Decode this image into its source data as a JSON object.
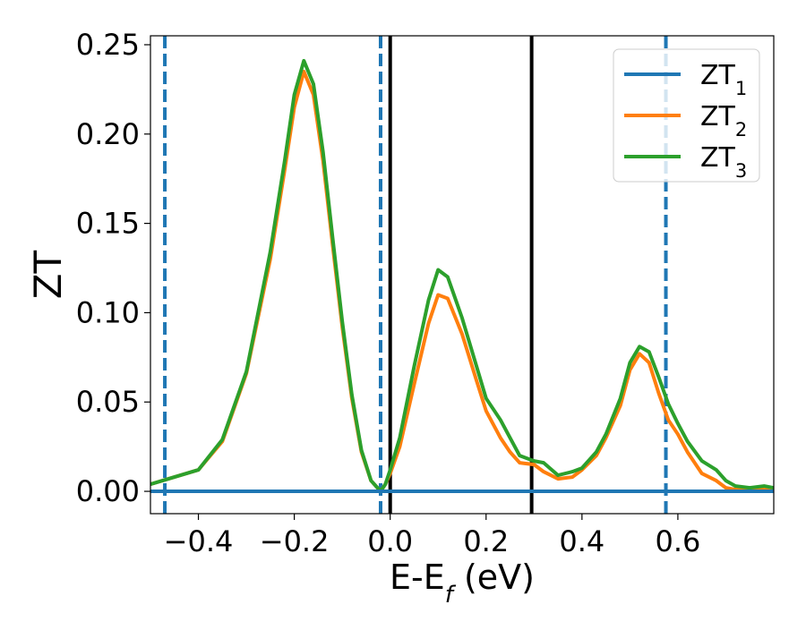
{
  "chart_data": {
    "type": "line",
    "title": "",
    "xlabel": "E-E",
    "xlabel_sub": "f",
    "xlabel_tail": " (eV)",
    "ylabel": "ZT",
    "xlim": [
      -0.5,
      0.8
    ],
    "ylim": [
      -0.0125,
      0.255
    ],
    "grid": false,
    "legend_position": "top-right",
    "xticks": [
      -0.4,
      -0.2,
      0.0,
      0.2,
      0.4,
      0.6
    ],
    "xtick_labels": [
      "−0.4",
      "−0.2",
      "0.0",
      "0.2",
      "0.4",
      "0.6"
    ],
    "yticks": [
      0.0,
      0.05,
      0.1,
      0.15,
      0.2,
      0.25
    ],
    "ytick_labels": [
      "0.00",
      "0.05",
      "0.10",
      "0.15",
      "0.20",
      "0.25"
    ],
    "vlines": [
      {
        "x": -0.47,
        "style": "dashed",
        "color": "#1f77b4"
      },
      {
        "x": -0.02,
        "style": "dashed",
        "color": "#1f77b4"
      },
      {
        "x": 0.0,
        "style": "solid",
        "color": "#000000"
      },
      {
        "x": 0.295,
        "style": "solid",
        "color": "#000000"
      },
      {
        "x": 0.575,
        "style": "dashed",
        "color": "#1f77b4"
      }
    ],
    "series": [
      {
        "name": "ZT",
        "name_sub": "1",
        "color": "#1f77b4",
        "x": [
          -0.5,
          0.8
        ],
        "y": [
          0.0,
          0.0
        ]
      },
      {
        "name": "ZT",
        "name_sub": "2",
        "color": "#ff7f0e",
        "x": [
          -0.5,
          -0.45,
          -0.4,
          -0.35,
          -0.3,
          -0.25,
          -0.22,
          -0.2,
          -0.18,
          -0.16,
          -0.14,
          -0.12,
          -0.1,
          -0.08,
          -0.06,
          -0.04,
          -0.02,
          -0.01,
          0.0,
          0.02,
          0.05,
          0.08,
          0.1,
          0.12,
          0.15,
          0.18,
          0.2,
          0.23,
          0.25,
          0.27,
          0.3,
          0.32,
          0.35,
          0.38,
          0.4,
          0.43,
          0.45,
          0.48,
          0.5,
          0.52,
          0.54,
          0.56,
          0.58,
          0.6,
          0.62,
          0.65,
          0.68,
          0.7,
          0.72,
          0.75,
          0.78,
          0.8
        ],
        "y": [
          0.004,
          0.008,
          0.012,
          0.028,
          0.066,
          0.13,
          0.18,
          0.215,
          0.235,
          0.222,
          0.185,
          0.138,
          0.092,
          0.052,
          0.022,
          0.006,
          0.0,
          0.004,
          0.01,
          0.025,
          0.06,
          0.094,
          0.11,
          0.108,
          0.088,
          0.062,
          0.045,
          0.03,
          0.022,
          0.016,
          0.015,
          0.011,
          0.007,
          0.008,
          0.012,
          0.02,
          0.03,
          0.048,
          0.068,
          0.077,
          0.072,
          0.055,
          0.04,
          0.032,
          0.022,
          0.01,
          0.006,
          0.002,
          0.001,
          0.002,
          0.001,
          0.0
        ]
      },
      {
        "name": "ZT",
        "name_sub": "3",
        "color": "#2ca02c",
        "x": [
          -0.5,
          -0.45,
          -0.4,
          -0.35,
          -0.3,
          -0.25,
          -0.22,
          -0.2,
          -0.18,
          -0.16,
          -0.14,
          -0.12,
          -0.1,
          -0.08,
          -0.06,
          -0.04,
          -0.02,
          -0.01,
          0.0,
          0.02,
          0.05,
          0.08,
          0.1,
          0.12,
          0.15,
          0.18,
          0.2,
          0.23,
          0.25,
          0.27,
          0.3,
          0.32,
          0.35,
          0.38,
          0.4,
          0.43,
          0.45,
          0.48,
          0.5,
          0.52,
          0.54,
          0.56,
          0.58,
          0.6,
          0.62,
          0.65,
          0.68,
          0.7,
          0.72,
          0.75,
          0.78,
          0.8
        ],
        "y": [
          0.004,
          0.008,
          0.012,
          0.029,
          0.067,
          0.134,
          0.185,
          0.222,
          0.241,
          0.228,
          0.19,
          0.142,
          0.095,
          0.054,
          0.023,
          0.006,
          0.0,
          0.004,
          0.012,
          0.03,
          0.07,
          0.107,
          0.124,
          0.12,
          0.097,
          0.07,
          0.052,
          0.04,
          0.03,
          0.02,
          0.017,
          0.016,
          0.009,
          0.011,
          0.013,
          0.022,
          0.032,
          0.052,
          0.072,
          0.081,
          0.078,
          0.064,
          0.049,
          0.038,
          0.028,
          0.017,
          0.012,
          0.006,
          0.003,
          0.002,
          0.003,
          0.002
        ]
      }
    ]
  }
}
